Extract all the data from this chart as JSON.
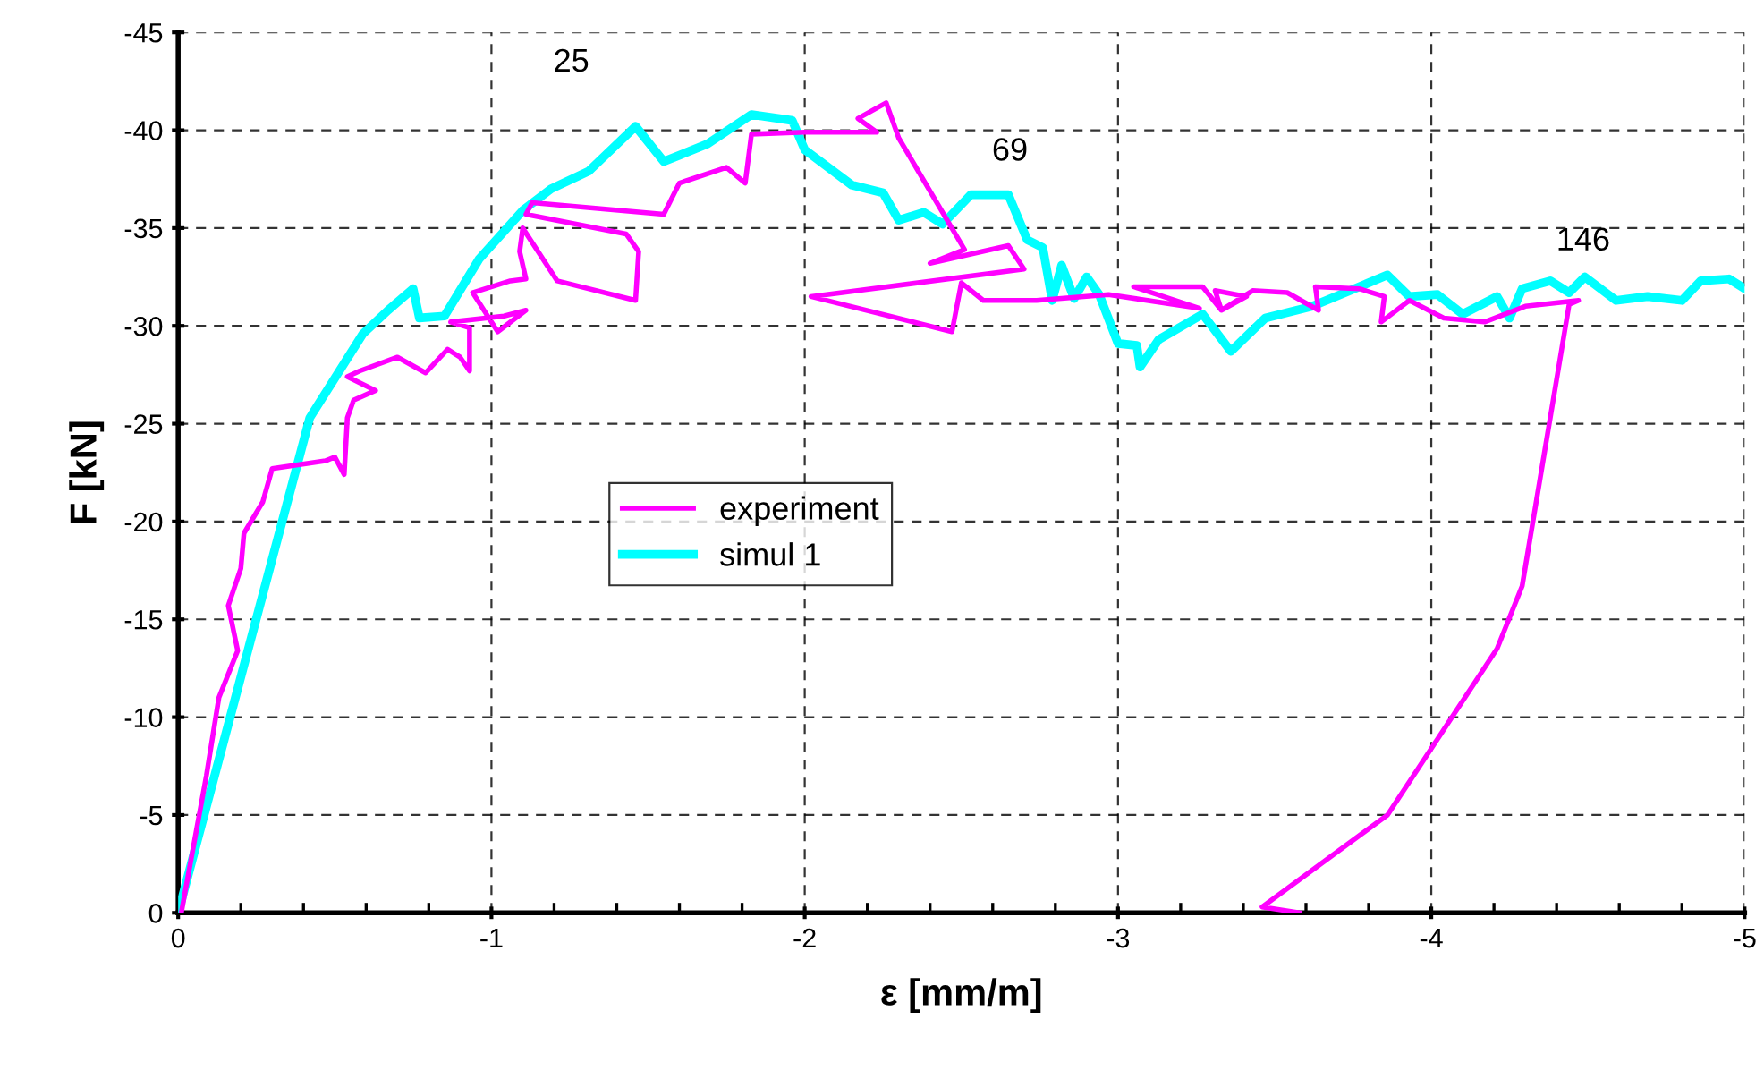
{
  "chart_data": {
    "type": "line",
    "xlabel": "ε [mm/m]",
    "ylabel": "F [kN]",
    "xlim": [
      0,
      -5
    ],
    "ylim": [
      0,
      -45
    ],
    "xticks": [
      0,
      -1,
      -2,
      -3,
      -4,
      -5
    ],
    "yticks": [
      0,
      -5,
      -10,
      -15,
      -20,
      -25,
      -30,
      -35,
      -40,
      -45
    ],
    "grid": true,
    "legend": "center",
    "line_style": "solid",
    "marker": "none",
    "annotations": [
      "25",
      "69",
      "146"
    ],
    "series": [
      {
        "name": "experiment",
        "color": "#ff00ff",
        "x": [
          -0.01,
          -0.09,
          -0.13,
          -0.19,
          -0.16,
          -0.2,
          -0.21,
          -0.27,
          -0.3,
          -0.47,
          -0.5,
          -0.53,
          -0.54,
          -0.56,
          -0.63,
          -0.54,
          -0.58,
          -0.7,
          -0.79,
          -0.86,
          -0.9,
          -0.93,
          -0.93,
          -0.87,
          -1.04,
          -1.11,
          -1.02,
          -0.94,
          -1.06,
          -1.11,
          -1.09,
          -1.1,
          -1.21,
          -1.46,
          -1.47,
          -1.43,
          -1.11,
          -1.13,
          -1.55,
          -1.6,
          -1.75,
          -1.81,
          -1.83,
          -2.0,
          -2.23,
          -2.17,
          -2.26,
          -2.3,
          -2.51,
          -2.4,
          -2.65,
          -2.7,
          -2.02,
          -2.47,
          -2.5,
          -2.57,
          -2.74,
          -2.97,
          -3.26,
          -3.05,
          -3.27,
          -3.33,
          -3.41,
          -3.31,
          -3.33,
          -3.43,
          -3.54,
          -3.64,
          -3.63,
          -3.77,
          -3.85,
          -3.84,
          -3.93,
          -4.04,
          -4.17,
          -4.3,
          -4.47,
          -4.44,
          -4.29,
          -4.21,
          -3.86,
          -3.46,
          -3.58
        ],
        "values": [
          0,
          -7.0,
          -11.0,
          -13.4,
          -15.7,
          -17.6,
          -19.4,
          -21.0,
          -22.7,
          -23.1,
          -23.3,
          -22.4,
          -25.3,
          -26.2,
          -26.7,
          -27.4,
          -27.7,
          -28.4,
          -27.6,
          -28.8,
          -28.4,
          -27.7,
          -29.9,
          -30.2,
          -30.5,
          -30.8,
          -29.7,
          -31.7,
          -32.3,
          -32.4,
          -33.8,
          -35.0,
          -32.3,
          -31.3,
          -33.8,
          -34.7,
          -35.7,
          -36.3,
          -35.7,
          -37.3,
          -38.1,
          -37.3,
          -39.8,
          -39.9,
          -39.9,
          -40.6,
          -41.4,
          -39.6,
          -33.9,
          -33.2,
          -34.1,
          -32.9,
          -31.5,
          -29.7,
          -32.2,
          -31.3,
          -31.3,
          -31.6,
          -30.9,
          -32.0,
          -32.0,
          -30.8,
          -31.5,
          -31.8,
          -30.8,
          -31.8,
          -31.7,
          -30.8,
          -32.0,
          -31.9,
          -31.5,
          -30.2,
          -31.3,
          -30.4,
          -30.2,
          -31.0,
          -31.3,
          -31.1,
          -16.7,
          -13.5,
          -5.0,
          -0.3,
          0
        ]
      },
      {
        "name": "simul 1",
        "color": "#00ffff",
        "x": [
          0,
          -0.42,
          -0.59,
          -0.67,
          -0.75,
          -0.77,
          -0.85,
          -0.96,
          -1.1,
          -1.19,
          -1.31,
          -1.46,
          -1.55,
          -1.69,
          -1.83,
          -1.96,
          -2.0,
          -2.15,
          -2.25,
          -2.3,
          -2.38,
          -2.44,
          -2.53,
          -2.65,
          -2.71,
          -2.76,
          -2.79,
          -2.82,
          -2.86,
          -2.9,
          -2.94,
          -3.0,
          -3.06,
          -3.07,
          -3.13,
          -3.27,
          -3.36,
          -3.47,
          -3.62,
          -3.77,
          -3.86,
          -3.93,
          -4.02,
          -4.1,
          -4.21,
          -4.25,
          -4.29,
          -4.38,
          -4.44,
          -4.49,
          -4.59,
          -4.69,
          -4.8,
          -4.86,
          -4.95,
          -5.0
        ],
        "values": [
          0,
          -25.3,
          -29.6,
          -30.8,
          -31.9,
          -30.4,
          -30.5,
          -33.4,
          -35.9,
          -37.0,
          -37.9,
          -40.2,
          -38.4,
          -39.3,
          -40.8,
          -40.5,
          -39.0,
          -37.2,
          -36.8,
          -35.4,
          -35.8,
          -35.2,
          -36.7,
          -36.7,
          -34.4,
          -34.0,
          -31.3,
          -33.1,
          -31.4,
          -32.5,
          -31.6,
          -29.1,
          -29.0,
          -27.9,
          -29.3,
          -30.6,
          -28.7,
          -30.4,
          -31.0,
          -32.0,
          -32.6,
          -31.5,
          -31.6,
          -30.6,
          -31.5,
          -30.4,
          -31.9,
          -32.3,
          -31.7,
          -32.5,
          -31.3,
          -31.5,
          -31.3,
          -32.3,
          -32.4,
          -31.9
        ]
      }
    ]
  }
}
